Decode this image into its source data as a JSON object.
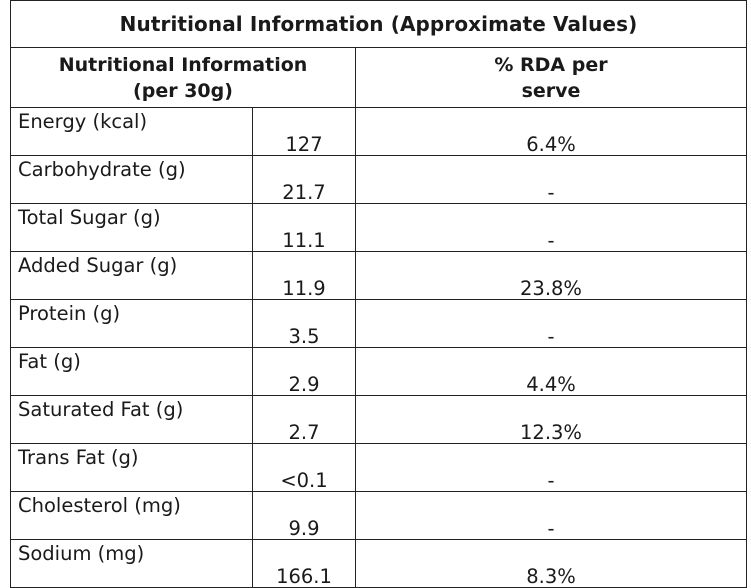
{
  "title": "Nutritional Information (Approximate Values)",
  "header": {
    "nutrient_line1": "Nutritional Information",
    "nutrient_line2": "(per 30g)",
    "rda_line1": "% RDA per",
    "rda_line2": "serve"
  },
  "rows": [
    {
      "name": "Energy (kcal)",
      "value": "127",
      "rda": "6.4%"
    },
    {
      "name": "Carbohydrate (g)",
      "value": "21.7",
      "rda": "-"
    },
    {
      "name": "Total Sugar (g)",
      "value": "11.1",
      "rda": "-"
    },
    {
      "name": "Added Sugar (g)",
      "value": "11.9",
      "rda": "23.8%"
    },
    {
      "name": "Protein (g)",
      "value": "3.5",
      "rda": "-"
    },
    {
      "name": "Fat (g)",
      "value": "2.9",
      "rda": "4.4%"
    },
    {
      "name": "Saturated Fat (g)",
      "value": "2.7",
      "rda": "12.3%"
    },
    {
      "name": "Trans Fat (g)",
      "value": "<0.1",
      "rda": "-"
    },
    {
      "name": "Cholesterol (mg)",
      "value": "9.9",
      "rda": "-"
    },
    {
      "name": "Sodium (mg)",
      "value": "166.1",
      "rda": "8.3%"
    }
  ]
}
